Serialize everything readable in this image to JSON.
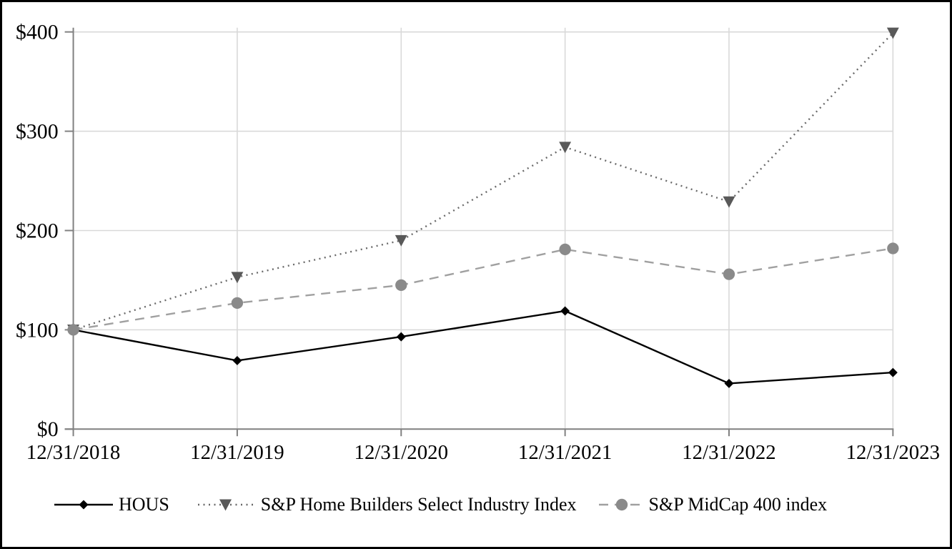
{
  "chart_data": {
    "type": "line",
    "title": "",
    "xlabel": "",
    "ylabel": "",
    "categories": [
      "12/31/2018",
      "12/31/2019",
      "12/31/2020",
      "12/31/2021",
      "12/31/2022",
      "12/31/2023"
    ],
    "series": [
      {
        "name": "HOUS",
        "values": [
          100,
          69,
          93,
          119,
          46,
          57
        ],
        "line_style": "solid",
        "line_color": "#000000",
        "marker": "diamond",
        "marker_color": "#000000"
      },
      {
        "name": "S&P Home Builders Select Industry Index",
        "values": [
          100,
          153,
          190,
          284,
          229,
          399
        ],
        "line_style": "dotted",
        "line_color": "#696969",
        "marker": "triangle-down",
        "marker_color": "#595959"
      },
      {
        "name": "S&P MidCap 400 index",
        "values": [
          100,
          127,
          145,
          181,
          156,
          182
        ],
        "line_style": "dashed",
        "line_color": "#a0a0a0",
        "marker": "circle",
        "marker_color": "#8a8a8a"
      }
    ],
    "ylim": [
      0,
      400
    ],
    "y_ticks": [
      {
        "value": 0,
        "label": "$0"
      },
      {
        "value": 100,
        "label": "$100"
      },
      {
        "value": 200,
        "label": "$200"
      },
      {
        "value": 300,
        "label": "$300"
      },
      {
        "value": 400,
        "label": "$400"
      }
    ],
    "grid": true,
    "legend_position": "bottom",
    "colors": {
      "axis": "#808080",
      "gridline": "#d9d9d9",
      "background": "#ffffff",
      "frame_border": "#000000",
      "text": "#000000"
    }
  }
}
